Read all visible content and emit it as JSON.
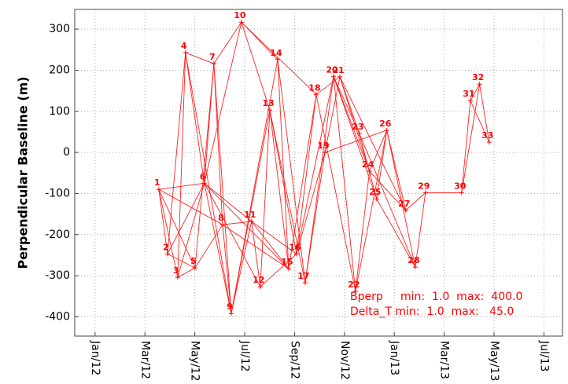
{
  "chart_data": {
    "type": "network",
    "y_label": "Perpendicular Baseline (m)",
    "color": "#ff0000",
    "grid": true,
    "xlim": [
      2011.932,
      2013.562
    ],
    "ylim": [
      -447,
      348
    ],
    "xticks": [
      {
        "value": 2012.0,
        "label": "Jan/12"
      },
      {
        "value": 2012.1667,
        "label": "Mar/12"
      },
      {
        "value": 2012.3333,
        "label": "May/12"
      },
      {
        "value": 2012.5,
        "label": "Jul/12"
      },
      {
        "value": 2012.6667,
        "label": "Sep/12"
      },
      {
        "value": 2012.8333,
        "label": "Nov/12"
      },
      {
        "value": 2013.0,
        "label": "Jan/13"
      },
      {
        "value": 2013.1667,
        "label": "Mar/13"
      },
      {
        "value": 2013.3333,
        "label": "May/13"
      },
      {
        "value": 2013.5,
        "label": "Jul/13"
      }
    ],
    "yticks": [
      -400,
      -300,
      -200,
      -100,
      0,
      100,
      200,
      300
    ],
    "labels": [
      "1",
      "2",
      "3",
      "4",
      "5",
      "6",
      "7",
      "8",
      "9",
      "10",
      "11",
      "12",
      "13",
      "14",
      "15",
      "16",
      "17",
      "18",
      "19",
      "20",
      "21",
      "22",
      "23",
      "24",
      "25",
      "26",
      "27",
      "28",
      "29",
      "30",
      "31",
      "32",
      "33"
    ],
    "x": [
      2012.213,
      2012.242,
      2012.276,
      2012.302,
      2012.334,
      2012.365,
      2012.397,
      2012.426,
      2012.455,
      2012.489,
      2012.523,
      2012.552,
      2012.584,
      2012.61,
      2012.647,
      2012.673,
      2012.702,
      2012.739,
      2012.768,
      2012.797,
      2012.818,
      2012.87,
      2012.883,
      2012.917,
      2012.941,
      2012.975,
      2013.038,
      2013.07,
      2013.104,
      2013.225,
      2013.254,
      2013.285,
      2013.317
    ],
    "values": [
      -90,
      -247,
      -304,
      243,
      -281,
      -75,
      216,
      -176,
      -392,
      317,
      -168,
      -327,
      103,
      226,
      -283,
      -247,
      -317,
      141,
      0,
      185,
      184,
      -338,
      46,
      -46,
      -113,
      54,
      -141,
      -279,
      -98,
      -98,
      126,
      166,
      25
    ],
    "connections": [
      [
        0,
        1
      ],
      [
        0,
        2
      ],
      [
        0,
        4
      ],
      [
        0,
        5
      ],
      [
        0,
        7
      ],
      [
        1,
        3
      ],
      [
        1,
        5
      ],
      [
        1,
        4
      ],
      [
        2,
        3
      ],
      [
        2,
        5
      ],
      [
        2,
        4
      ],
      [
        3,
        5
      ],
      [
        3,
        6
      ],
      [
        3,
        8
      ],
      [
        4,
        6
      ],
      [
        4,
        7
      ],
      [
        5,
        6
      ],
      [
        5,
        8
      ],
      [
        5,
        9
      ],
      [
        5,
        10
      ],
      [
        5,
        11
      ],
      [
        5,
        14
      ],
      [
        6,
        7
      ],
      [
        6,
        8
      ],
      [
        6,
        9
      ],
      [
        7,
        8
      ],
      [
        7,
        10
      ],
      [
        7,
        14
      ],
      [
        8,
        10
      ],
      [
        8,
        12
      ],
      [
        8,
        13
      ],
      [
        9,
        12
      ],
      [
        9,
        13
      ],
      [
        9,
        17
      ],
      [
        10,
        11
      ],
      [
        10,
        14
      ],
      [
        10,
        15
      ],
      [
        11,
        12
      ],
      [
        11,
        15
      ],
      [
        12,
        14
      ],
      [
        12,
        16
      ],
      [
        12,
        15
      ],
      [
        13,
        16
      ],
      [
        13,
        14
      ],
      [
        14,
        17
      ],
      [
        15,
        18
      ],
      [
        15,
        19
      ],
      [
        15,
        17
      ],
      [
        16,
        19
      ],
      [
        16,
        18
      ],
      [
        17,
        20
      ],
      [
        17,
        21
      ],
      [
        18,
        20
      ],
      [
        18,
        25
      ],
      [
        19,
        22
      ],
      [
        19,
        23
      ],
      [
        19,
        24
      ],
      [
        20,
        23
      ],
      [
        20,
        22
      ],
      [
        20,
        26
      ],
      [
        21,
        23
      ],
      [
        21,
        25
      ],
      [
        19,
        21
      ],
      [
        22,
        24
      ],
      [
        22,
        27
      ],
      [
        23,
        25
      ],
      [
        23,
        26
      ],
      [
        24,
        25
      ],
      [
        24,
        27
      ],
      [
        25,
        26
      ],
      [
        25,
        27
      ],
      [
        26,
        28
      ],
      [
        27,
        28
      ],
      [
        28,
        29
      ],
      [
        29,
        30
      ],
      [
        29,
        31
      ],
      [
        30,
        32
      ],
      [
        31,
        32
      ],
      [
        30,
        31
      ]
    ],
    "annotations": [
      "Bperp     min:  1.0  max:  400.0",
      "Delta_T min:  1.0  max:   45.0"
    ]
  }
}
